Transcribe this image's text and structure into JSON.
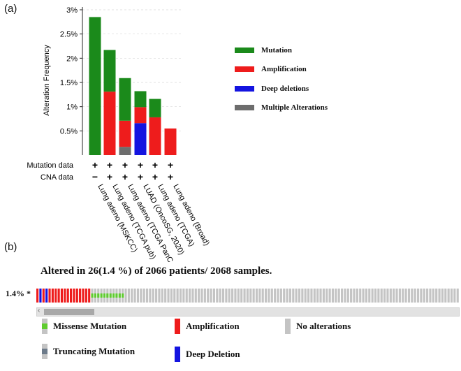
{
  "panel_a_label": "(a)",
  "panel_b_label": "(b)",
  "chart_data": {
    "type": "bar",
    "stacked": true,
    "ylabel": "Alteration Frequency",
    "ylim": [
      0,
      3.0
    ],
    "yticks": [
      "0.5%",
      "1%",
      "1.5%",
      "2%",
      "2.5%",
      "3%"
    ],
    "yticks_values": [
      0.5,
      1.0,
      1.5,
      2.0,
      2.5,
      3.0
    ],
    "grid": true,
    "categories": [
      "Lung adeno (MSKCC)",
      "Lung adeno (TCGA pub)",
      "Lung adeno (TCGA PanCan)",
      "LUAD (OncoSG, 2020)",
      "Lung adeno (TCGA)",
      "Lung adeno (Broad)"
    ],
    "series": [
      {
        "name": "Multiple Alterations",
        "color": "#6d6d6d",
        "values": [
          0,
          0,
          0.17,
          0,
          0,
          0
        ]
      },
      {
        "name": "Deep deletions",
        "color": "#1414e0",
        "values": [
          0,
          0,
          0,
          0.66,
          0,
          0
        ]
      },
      {
        "name": "Amplification",
        "color": "#ee1c1c",
        "values": [
          0,
          1.31,
          0.54,
          0.33,
          0.78,
          0.55
        ]
      },
      {
        "name": "Mutation",
        "color": "#1b8a1b",
        "values": [
          2.85,
          0.86,
          0.88,
          0.33,
          0.38,
          0
        ]
      }
    ],
    "legend_order": [
      "Mutation",
      "Amplification",
      "Deep deletions",
      "Multiple Alterations"
    ],
    "legend_placement": "right",
    "rows": [
      {
        "label": "Mutation data",
        "values": [
          "+",
          "+",
          "+",
          "+",
          "+",
          "+"
        ]
      },
      {
        "label": "CNA data",
        "values": [
          "−",
          "+",
          "+",
          "+",
          "+",
          "+"
        ]
      }
    ]
  },
  "oncoprint": {
    "title": "Altered in 26(1.4 %) of 2066 patients/ 2068 samples.",
    "row_label": "1.4% *",
    "colors": {
      "amplification": "#ee1c1c",
      "deep_deletion": "#1414e0",
      "missense": "#5fcc2f",
      "truncating": "#6d7b8a",
      "no_alteration": "#c4c4c4"
    },
    "visible_cells": [
      "amp",
      "del",
      "amp",
      "del",
      "amp",
      "amp",
      "amp",
      "amp",
      "amp",
      "amp",
      "amp",
      "amp",
      "amp",
      "amp",
      "amp",
      "amp",
      "amp",
      "amp",
      "mis",
      "mis",
      "mis",
      "mis",
      "mis",
      "mis",
      "mis",
      "mis",
      "mis",
      "mis",
      "mis",
      "none",
      "none",
      "none",
      "none",
      "none",
      "none",
      "none",
      "none",
      "none",
      "none",
      "none",
      "none",
      "none",
      "none",
      "none",
      "none",
      "none",
      "none",
      "none",
      "none",
      "none",
      "none",
      "none",
      "none",
      "none",
      "none",
      "none",
      "none",
      "none",
      "none",
      "none",
      "none",
      "none",
      "none",
      "none",
      "none",
      "none",
      "none",
      "none",
      "none",
      "none",
      "none",
      "none",
      "none",
      "none",
      "none",
      "none",
      "none",
      "none",
      "none",
      "none",
      "none",
      "none",
      "none",
      "none",
      "none",
      "none",
      "none",
      "none",
      "none",
      "none",
      "none",
      "none",
      "none",
      "none",
      "none",
      "none",
      "none",
      "none",
      "none",
      "none",
      "none",
      "none",
      "none",
      "none",
      "none",
      "none",
      "none",
      "none",
      "none",
      "none",
      "none",
      "none",
      "none",
      "none",
      "none",
      "none",
      "none",
      "none",
      "none",
      "none",
      "none",
      "none",
      "none",
      "none",
      "none",
      "none",
      "none",
      "none",
      "none",
      "none",
      "none",
      "none",
      "none",
      "none",
      "none",
      "none",
      "none",
      "none",
      "none"
    ],
    "scroll_arrow": "‹",
    "scroll_fraction": 0.12,
    "legend": [
      {
        "key": "missense",
        "label": "Missense Mutation"
      },
      {
        "key": "amplification",
        "label": "Amplification"
      },
      {
        "key": "no_alteration",
        "label": "No alterations"
      },
      {
        "key": "truncating",
        "label": "Truncating Mutation"
      },
      {
        "key": "deep_deletion",
        "label": "Deep Deletion"
      }
    ]
  }
}
